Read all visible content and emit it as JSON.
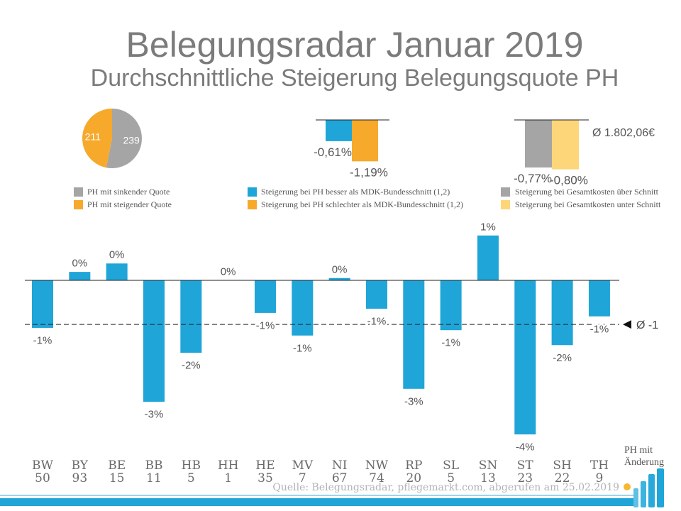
{
  "title": "Belegungsradar Januar 2019",
  "subtitle": "Durchschnittliche Steigerung Belegungsquote PH",
  "chart_data": [
    {
      "type": "pie",
      "slices": [
        {
          "name": "PH mit sinkender Quote",
          "value": 239,
          "color": "#a5a5a5"
        },
        {
          "name": "PH mit steigender Quote",
          "value": 211,
          "color": "#f6a92b"
        }
      ]
    },
    {
      "type": "bar",
      "series": [
        {
          "name": "Steigerung bei PH besser als MDK-Bundesschnitt (1,2)",
          "value": -0.61,
          "label": "-0,61%",
          "color": "#1fa5d8"
        },
        {
          "name": "Steigerung bei PH schlechter als MDK-Bundesschnitt (1,2)",
          "value": -1.19,
          "label": "-1,19%",
          "color": "#f6a92b"
        }
      ]
    },
    {
      "type": "bar",
      "series": [
        {
          "name": "Steigerung bei Gesamtkosten über Schnitt",
          "value": -0.77,
          "label": "-0,77%",
          "color": "#a5a5a5"
        },
        {
          "name": "Steigerung bei Gesamtkosten unter Schnitt",
          "value": -0.8,
          "label": "-0,80%",
          "color": "#fdd679"
        }
      ],
      "annotation": "Ø 1.802,06€"
    },
    {
      "type": "bar",
      "categories": [
        "BW",
        "BY",
        "BE",
        "BB",
        "HB",
        "HH",
        "HE",
        "MV",
        "NI",
        "NW",
        "RP",
        "SL",
        "SN",
        "ST",
        "SH",
        "TH"
      ],
      "counts": [
        50,
        93,
        15,
        11,
        5,
        1,
        35,
        7,
        67,
        74,
        20,
        5,
        13,
        23,
        22,
        9
      ],
      "values": [
        -1.24,
        0.22,
        0.44,
        -3.17,
        -1.89,
        0,
        -0.85,
        -1.44,
        0.06,
        -0.74,
        -2.83,
        -1.3,
        1.17,
        -4.02,
        -1.69,
        -0.94
      ],
      "labels": [
        "-1%",
        "0%",
        "0%",
        "-3%",
        "-2%",
        "0%",
        "-1%",
        "-1%",
        "0%",
        "-1%",
        "-3%",
        "-1%",
        "1%",
        "-4%",
        "-2%",
        "-1%"
      ],
      "average": -1.15,
      "average_label": "Ø -1",
      "color": "#1fa5d8"
    }
  ],
  "source": "Quelle: Belegungsradar, pflegemarkt.com, abgerufen am 25.02.2019",
  "logo": {
    "line1": "PH mit",
    "line2": "Änderung"
  }
}
